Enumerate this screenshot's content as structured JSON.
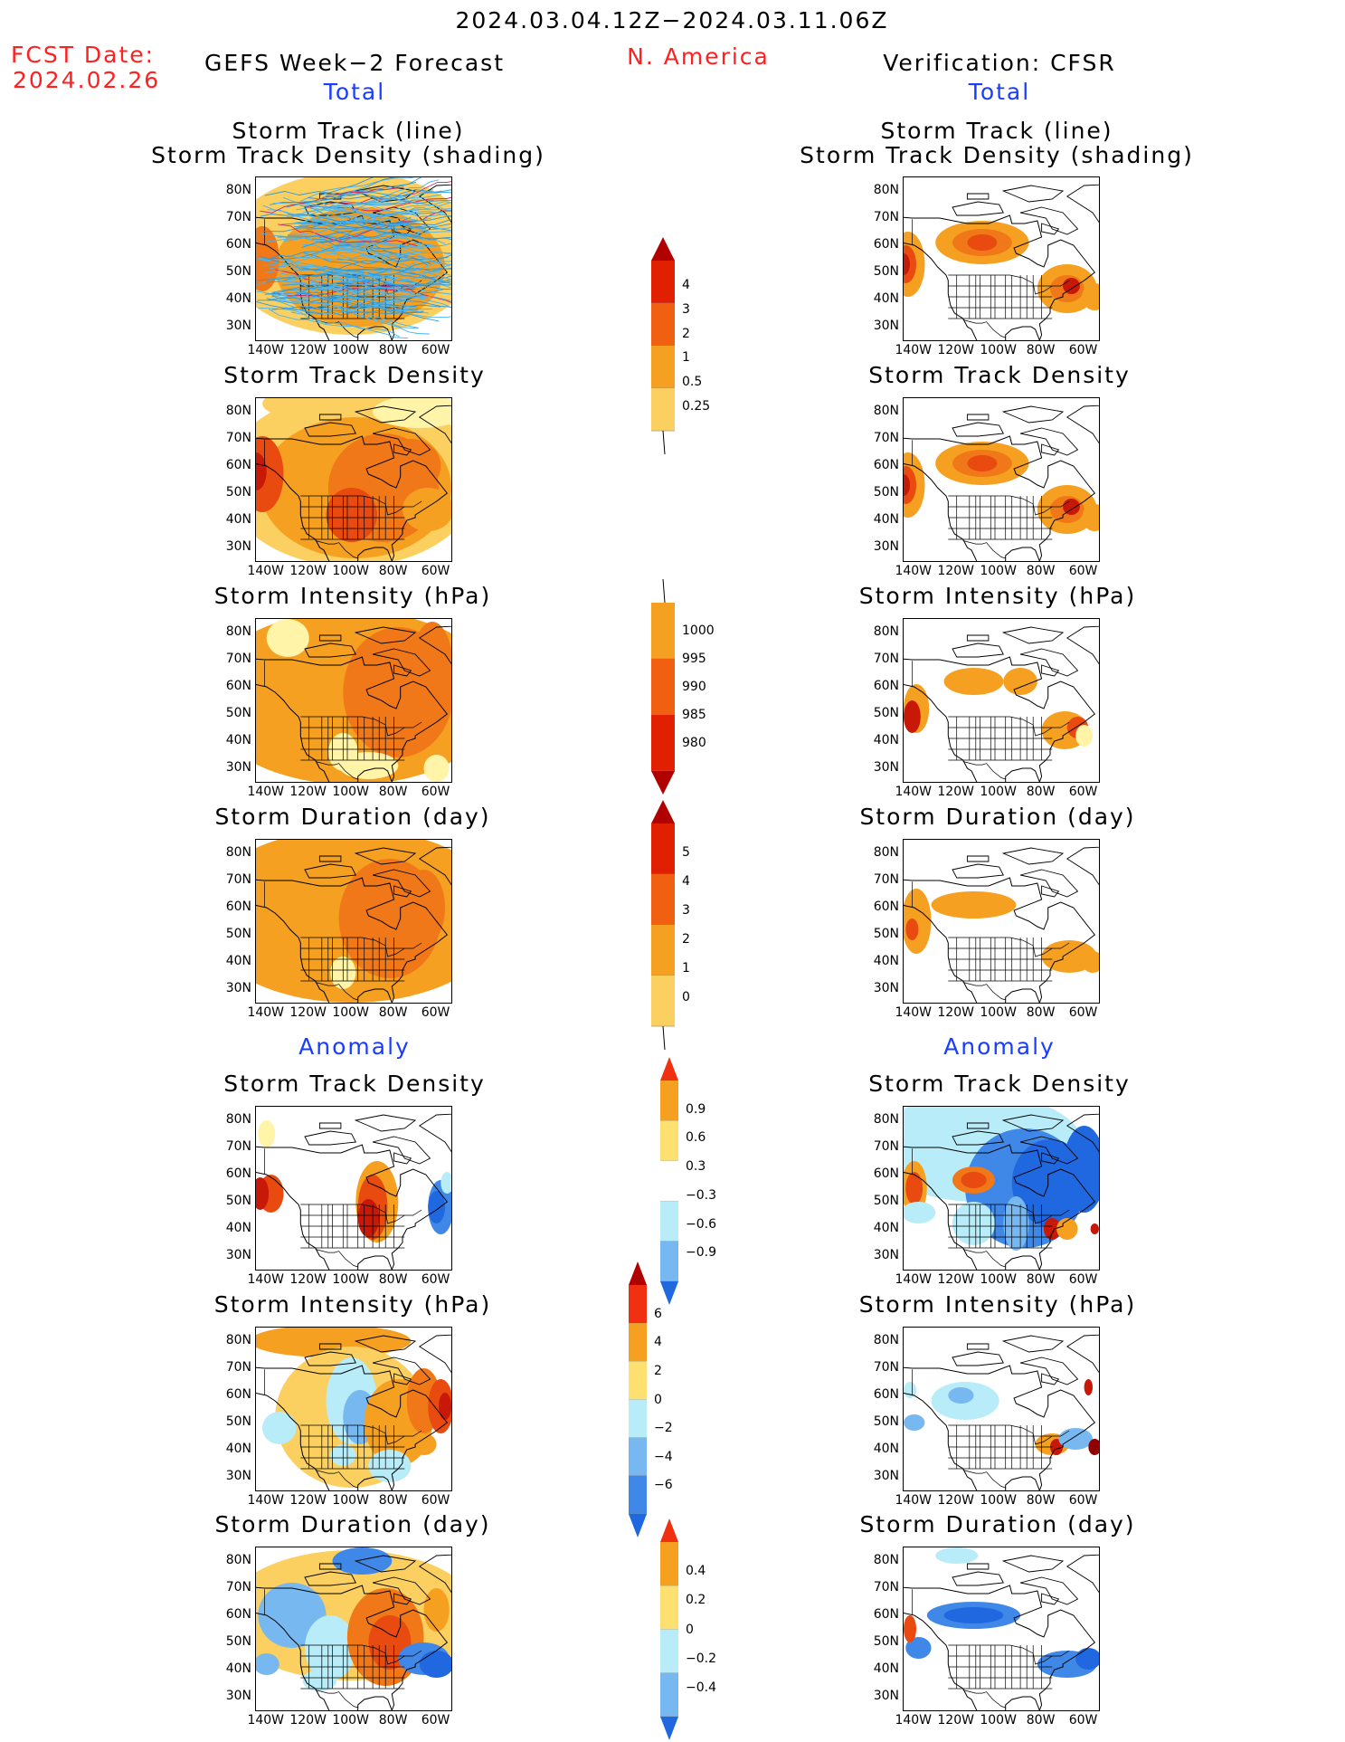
{
  "header": {
    "date_range": "2024.03.04.12Z−2024.03.11.06Z",
    "region": "N. America",
    "fcst_label": "FCST Date:",
    "fcst_date": "2024.02.26",
    "left_title": "GEFS Week−2 Forecast",
    "right_title": "Verification: CFSR"
  },
  "sections": {
    "total": "Total",
    "anomaly": "Anomaly"
  },
  "panels": {
    "track_title_1": "Storm Track (line)",
    "track_title_2": "Storm Track Density (shading)",
    "density": "Storm Track Density",
    "intensity": "Storm Intensity (hPa)",
    "duration": "Storm Duration (day)"
  },
  "axes": {
    "lat_labels": [
      "80N",
      "70N",
      "60N",
      "50N",
      "40N",
      "30N"
    ],
    "lon_labels": [
      "140W",
      "120W",
      "100W",
      "80W",
      "60W"
    ]
  },
  "colorbars": {
    "density_total": {
      "labels": [
        "4",
        "3",
        "2",
        "1",
        "0.5",
        "0.25"
      ],
      "colors": [
        "#b00000",
        "#e02000",
        "#f06010",
        "#f5a020",
        "#fbd060",
        "#fff4a8"
      ]
    },
    "intensity_total": {
      "labels": [
        "1000",
        "995",
        "990",
        "985",
        "980"
      ],
      "colors": [
        "#fff4a8",
        "#f5a020",
        "#f06010",
        "#e02000",
        "#b00000"
      ]
    },
    "duration_total": {
      "labels": [
        "5",
        "4",
        "3",
        "2",
        "1",
        "0"
      ],
      "colors": [
        "#b00000",
        "#e02000",
        "#f06010",
        "#f5a020",
        "#fbd060",
        "#fff4a8"
      ]
    },
    "density_anom": {
      "labels": [
        "0.9",
        "0.6",
        "0.3",
        "−0.3",
        "−0.6",
        "−0.9"
      ],
      "colors": [
        "#f03010",
        "#f5a020",
        "#fde070",
        "#ffffff",
        "#b8ecf8",
        "#78b8f0",
        "#2068e0"
      ]
    },
    "intensity_anom": {
      "labels": [
        "6",
        "4",
        "2",
        "0",
        "−2",
        "−4",
        "−6"
      ],
      "colors": [
        "#b00000",
        "#f03010",
        "#f5a020",
        "#fde070",
        "#b8ecf8",
        "#78b8f0",
        "#4088e8",
        "#2068e0"
      ]
    },
    "duration_anom": {
      "labels": [
        "0.4",
        "0.2",
        "0",
        "−0.2",
        "−0.4"
      ],
      "colors": [
        "#f03010",
        "#f5a020",
        "#fde070",
        "#b8ecf8",
        "#78b8f0",
        "#2068e0"
      ]
    }
  }
}
